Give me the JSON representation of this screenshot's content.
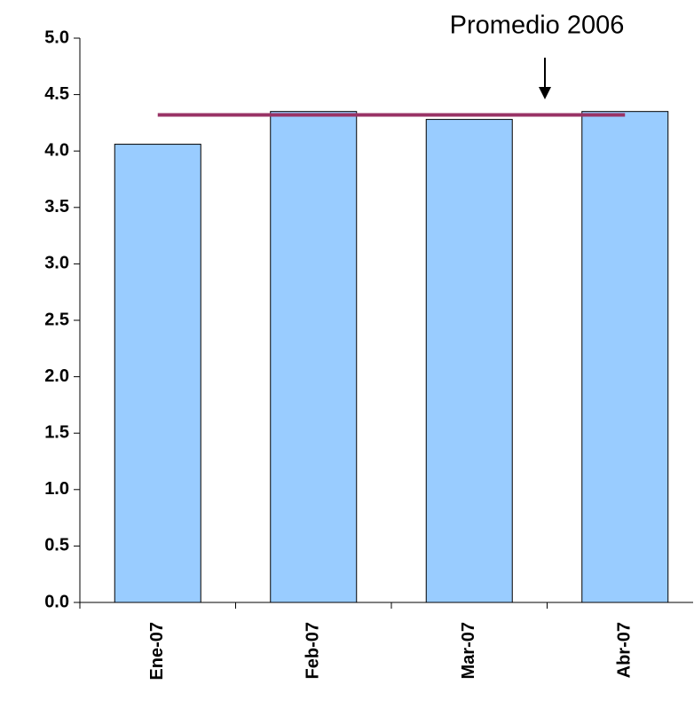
{
  "chart_data": {
    "type": "bar",
    "categories": [
      "Ene-07",
      "Feb-07",
      "Mar-07",
      "Abr-07"
    ],
    "values": [
      4.06,
      4.35,
      4.28,
      4.35
    ],
    "color": "#99ccff",
    "ylim": [
      0,
      5
    ],
    "yticks": [
      {
        "value": 0,
        "label": "0.0"
      },
      0.5,
      {
        "value": 1,
        "label": "1.0"
      },
      1.5,
      {
        "value": 2,
        "label": "2.0"
      },
      2.5,
      {
        "value": 3,
        "label": "3.0"
      },
      3.5,
      {
        "value": 4,
        "label": "4.0"
      },
      4.5,
      {
        "value": 5,
        "label": "5.0"
      }
    ],
    "reference_line": {
      "label": "Promedio 2006",
      "value": 4.32,
      "color": "#993366"
    }
  }
}
